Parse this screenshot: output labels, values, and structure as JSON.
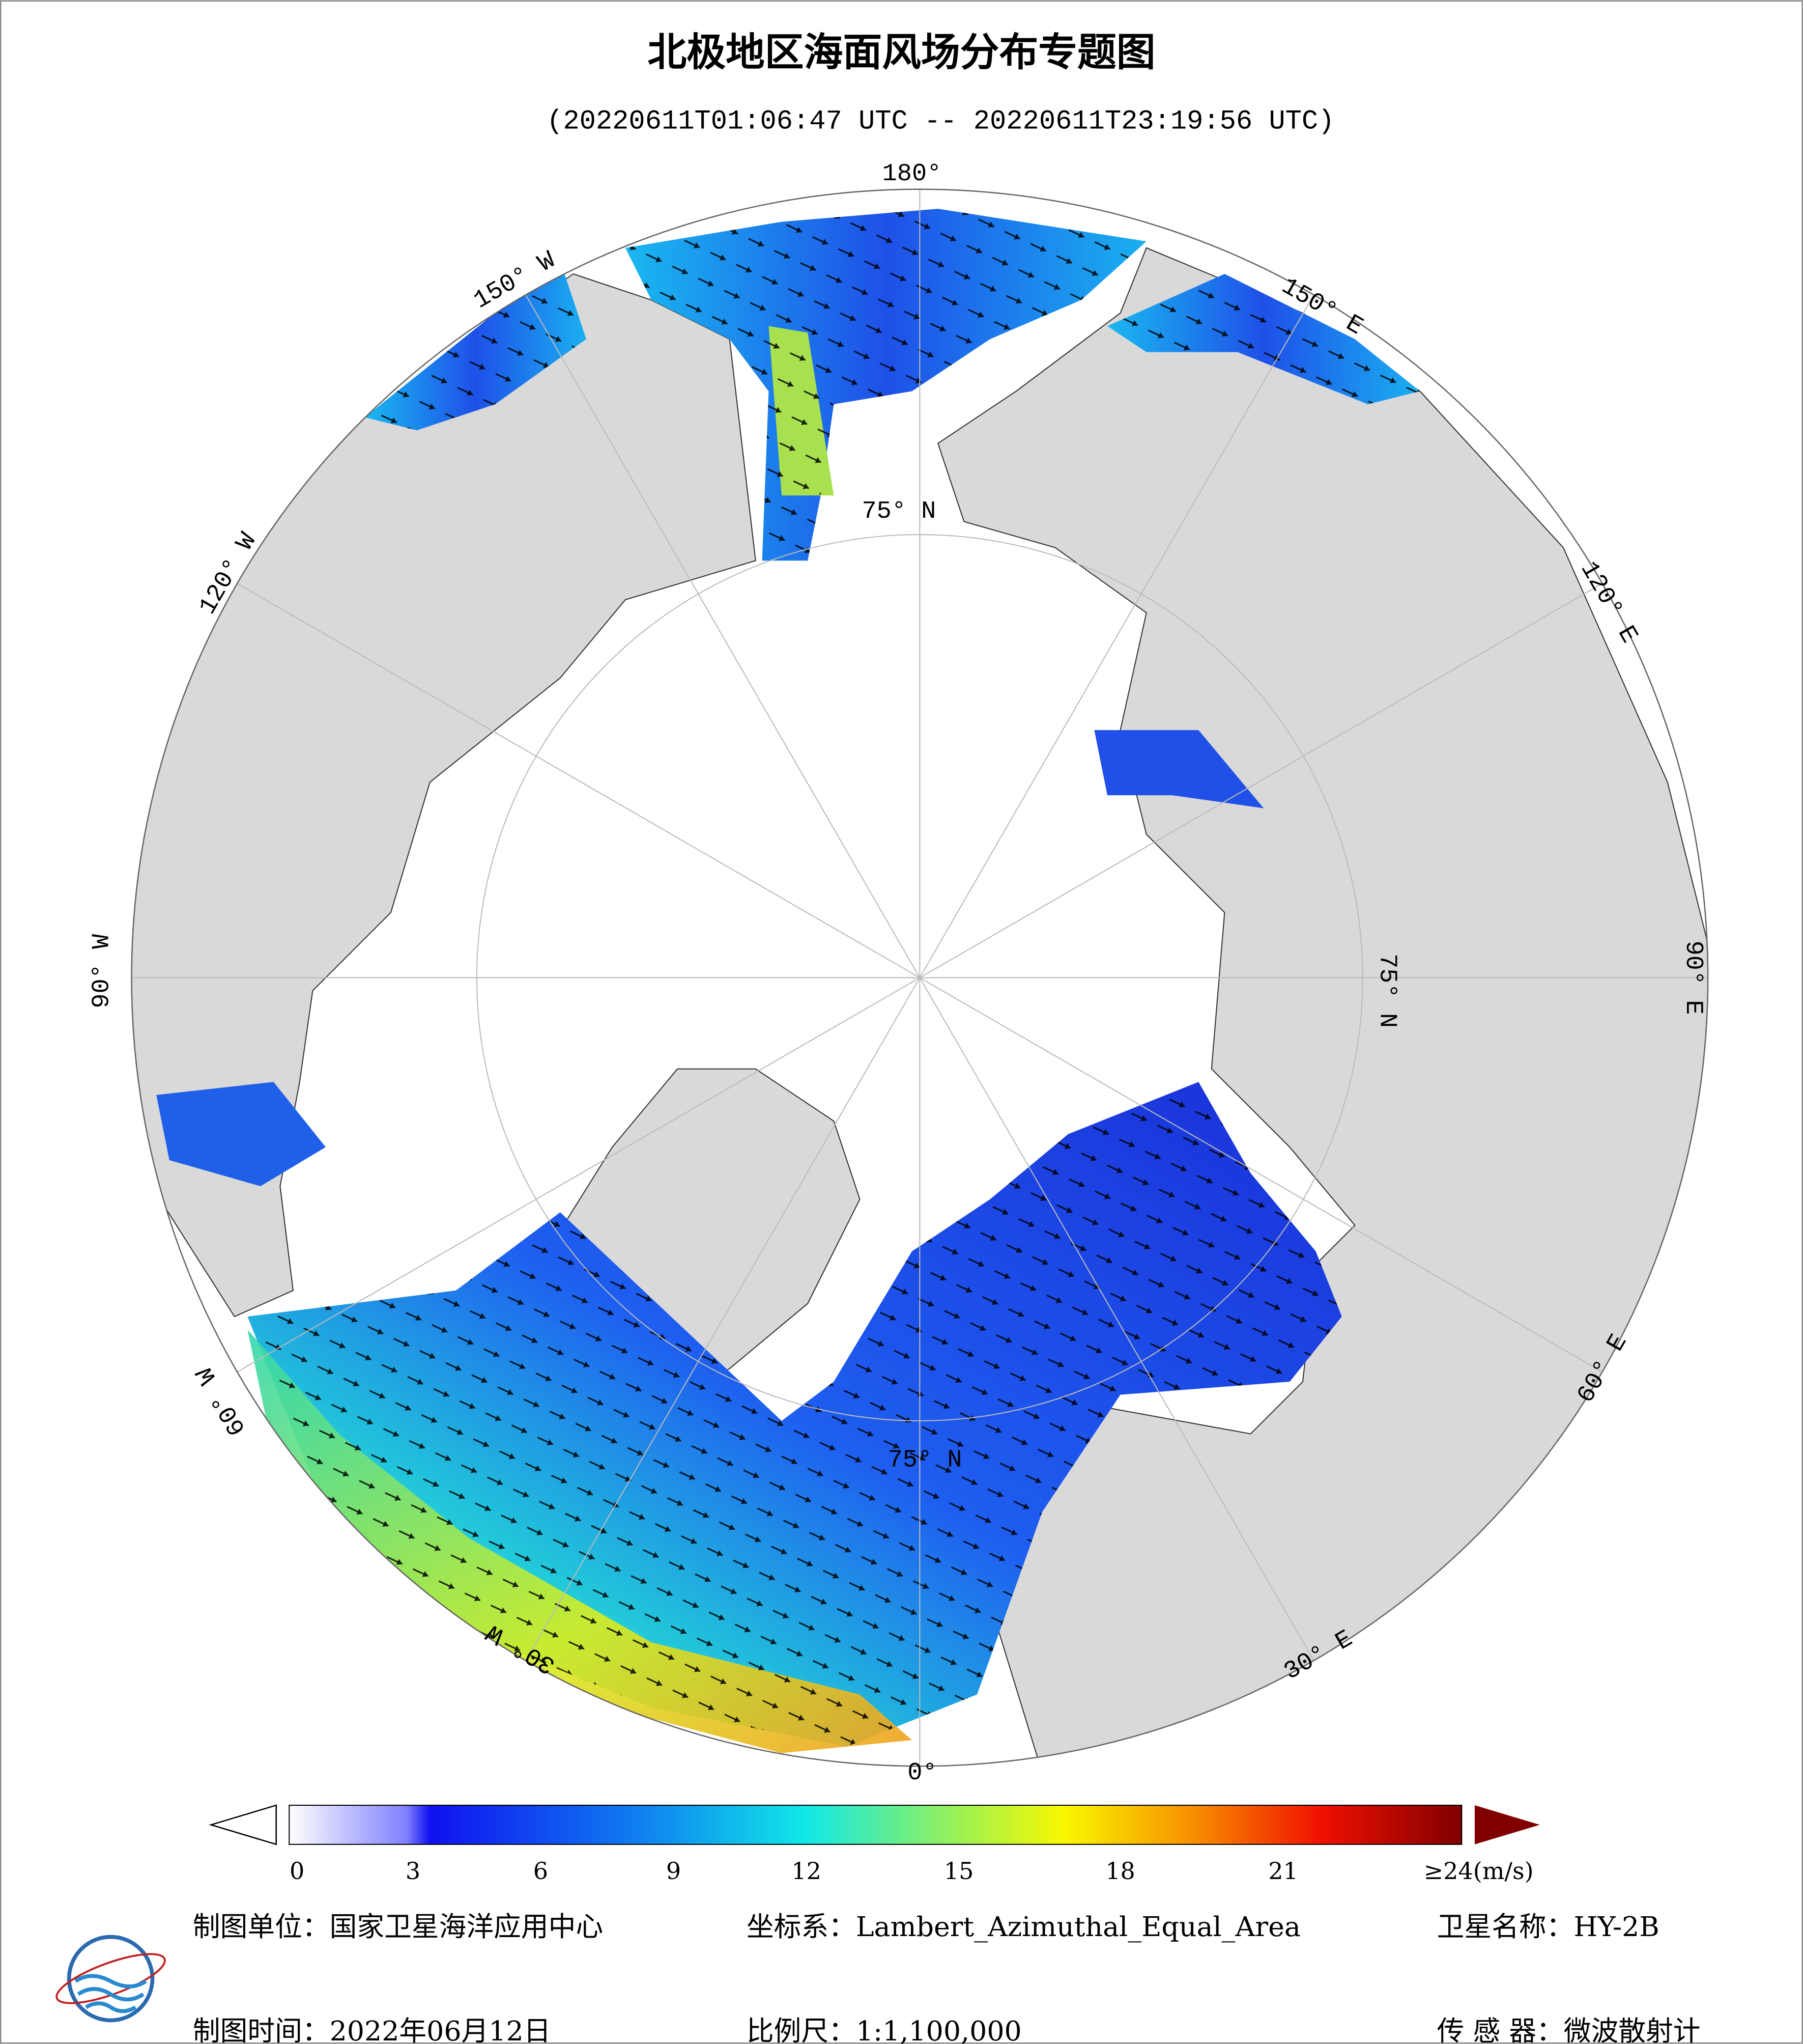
{
  "header": {
    "title": "北极地区海面风场分布专题图",
    "subtitle": "(20220611T01:06:47 UTC -- 20220611T23:19:56 UTC)"
  },
  "map": {
    "longitude_labels": [
      "180°",
      "150° E",
      "120° E",
      "90° E",
      "60° E",
      "30° E",
      "0°",
      "30° W",
      "60° W",
      "90° W",
      "120° W",
      "150° W"
    ],
    "latitude_labels": [
      "75° N",
      "75° N",
      "75° N"
    ]
  },
  "colorbar": {
    "ticks": [
      "0",
      "3",
      "6",
      "9",
      "12",
      "15",
      "18",
      "21",
      "≥24(m/s)"
    ]
  },
  "footer": {
    "unit": "制图单位：国家卫星海洋应用中心",
    "crs": "坐标系：Lambert_Azimuthal_Equal_Area",
    "satellite": "卫星名称：HY-2B",
    "date": "制图时间：2022年06月12日",
    "scale": "比例尺：1:1,100,000",
    "sensor": "传 感 器：微波散射计"
  }
}
